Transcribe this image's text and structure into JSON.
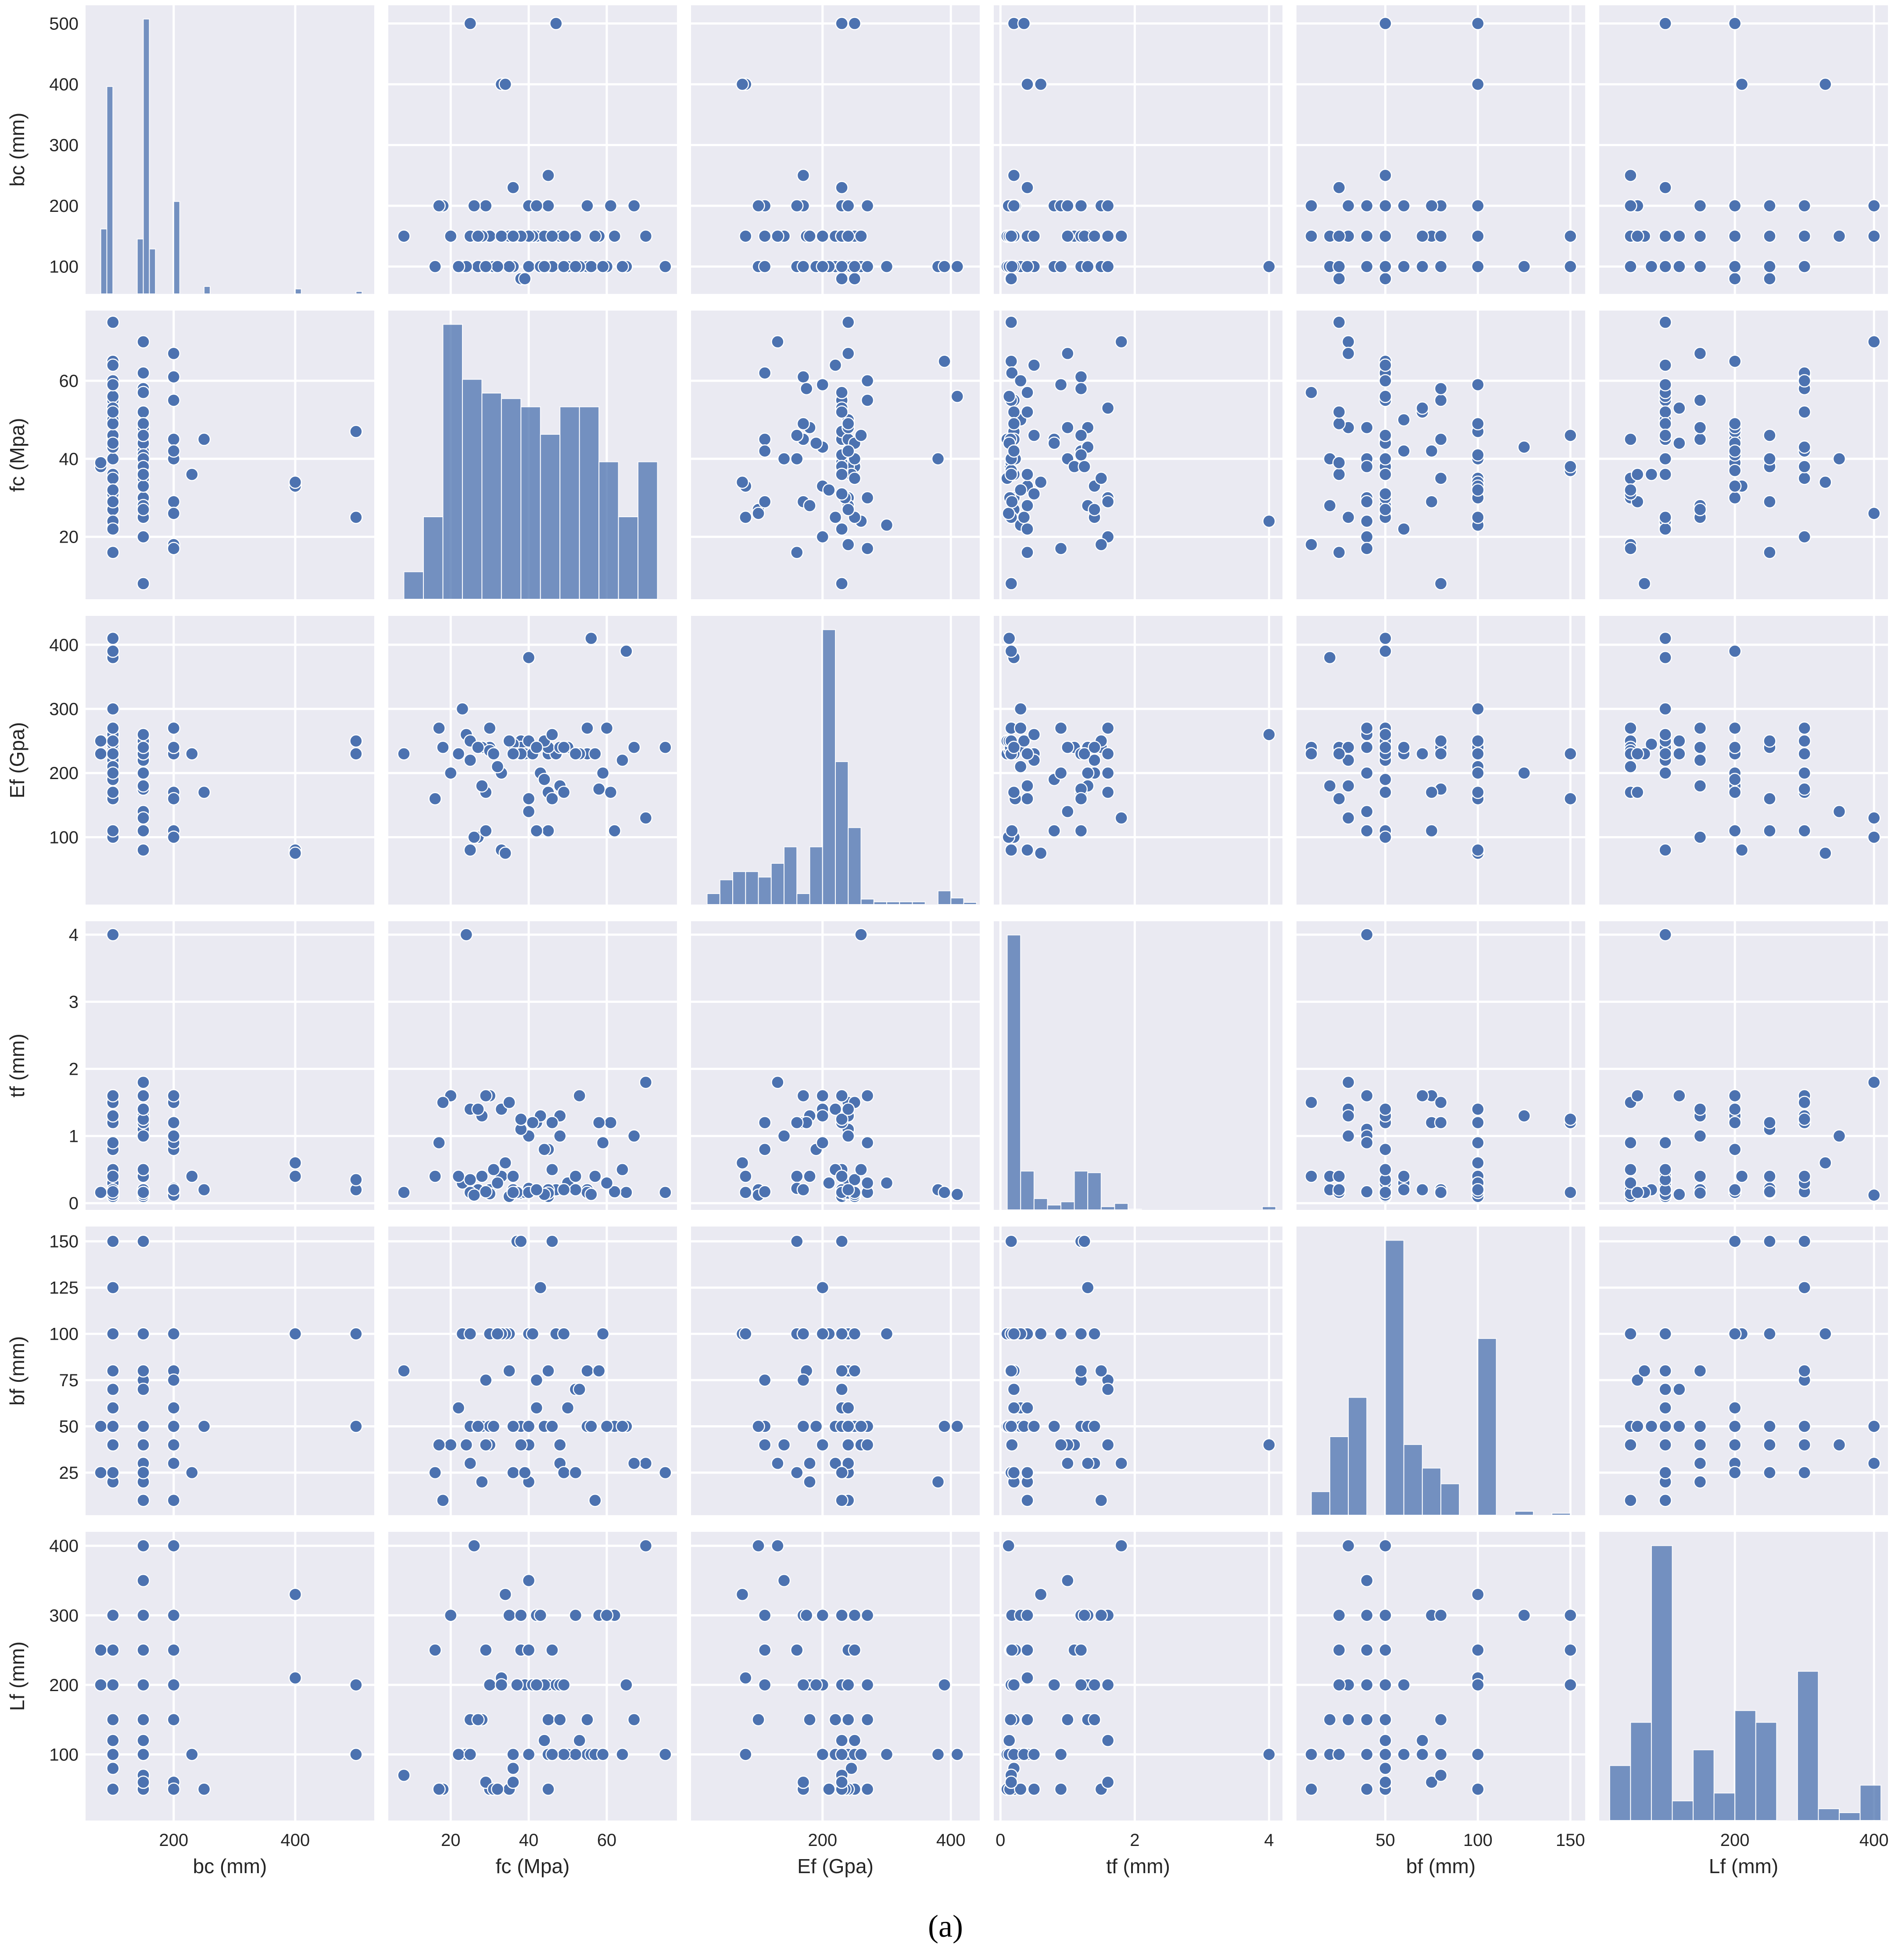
{
  "chart_data": {
    "type": "pairplot",
    "caption": "(a)",
    "colors": {
      "panel": "#eaeaf2",
      "grid": "#ffffff",
      "marker": "#4c72b0",
      "text": "#262626"
    },
    "variables": [
      {
        "name": "bc",
        "label": "bc (mm)",
        "range": [
          55,
          530
        ],
        "ticks": [
          200,
          400
        ],
        "yticks": [
          100,
          200,
          300,
          400,
          500
        ]
      },
      {
        "name": "fc",
        "label": "fc (Mpa)",
        "range": [
          4,
          78
        ],
        "ticks": [
          20,
          40,
          60
        ],
        "yticks": [
          20,
          40,
          60
        ]
      },
      {
        "name": "Ef",
        "label": "Ef (Gpa)",
        "range": [
          -5,
          445
        ],
        "ticks": [
          200,
          400
        ],
        "yticks": [
          100,
          200,
          300,
          400
        ]
      },
      {
        "name": "tf",
        "label": "tf (mm)",
        "range": [
          -0.1,
          4.2
        ],
        "ticks": [
          0,
          2,
          4
        ],
        "yticks": [
          0,
          1,
          2,
          3,
          4
        ]
      },
      {
        "name": "bf",
        "label": "bf (mm)",
        "range": [
          2,
          158
        ],
        "ticks": [
          50,
          100,
          150
        ],
        "yticks": [
          25,
          50,
          75,
          100,
          125,
          150
        ]
      },
      {
        "name": "Lf",
        "label": "Lf (mm)",
        "range": [
          5,
          420
        ],
        "ticks": [
          200,
          400
        ],
        "yticks": [
          100,
          200,
          300,
          400
        ]
      }
    ],
    "histograms": {
      "bc": {
        "bin_edges": [
          80,
          90,
          100,
          110,
          120,
          130,
          140,
          150,
          160,
          170,
          180,
          190,
          200,
          210,
          220,
          230,
          240,
          250,
          260,
          270,
          280,
          290,
          300,
          310,
          320,
          330,
          340,
          350,
          360,
          370,
          380,
          390,
          400,
          410,
          420,
          430,
          440,
          450,
          460,
          470,
          480,
          490,
          500,
          510
        ],
        "counts": [
          26,
          83,
          0,
          0,
          0,
          0,
          22,
          110,
          18,
          0,
          0,
          0,
          37,
          0,
          0,
          0,
          0,
          3,
          0,
          0,
          0,
          0,
          0,
          0,
          0,
          0,
          0,
          0,
          0,
          0,
          0,
          0,
          2,
          0,
          0,
          0,
          0,
          0,
          0,
          0,
          0,
          0,
          1
        ]
      },
      "fc": {
        "bin_edges": [
          8,
          13,
          18,
          23,
          28,
          33,
          38,
          43,
          48,
          53,
          58,
          63,
          68,
          73,
          78
        ],
        "counts": [
          1,
          3,
          10,
          8,
          7.5,
          7.3,
          7,
          6,
          7,
          7,
          5,
          3,
          5,
          0,
          4
        ]
      },
      "Ef": {
        "bin_edges": [
          20,
          40,
          60,
          80,
          100,
          120,
          140,
          160,
          180,
          200,
          220,
          240,
          260,
          280,
          300,
          320,
          340,
          360,
          380,
          400,
          420,
          440
        ],
        "counts": [
          2,
          4.5,
          6,
          6,
          5,
          7.5,
          10.5,
          2,
          10.5,
          50,
          26,
          14,
          1,
          0.5,
          0.5,
          0.5,
          0.5,
          0,
          2.5,
          1.2,
          0.4
        ]
      },
      "tf": {
        "bin_edges": [
          0.1,
          0.3,
          0.5,
          0.7,
          0.9,
          1.1,
          1.3,
          1.5,
          1.7,
          1.9,
          2.1,
          2.3,
          2.5,
          2.7,
          2.9,
          3.1,
          3.3,
          3.5,
          3.7,
          3.9,
          4.1
        ],
        "counts": [
          170,
          24,
          7,
          3,
          5,
          24,
          23,
          2,
          4,
          0.5,
          0,
          0,
          0,
          0,
          0,
          0,
          0,
          0,
          0,
          2
        ]
      },
      "bf": {
        "bin_edges": [
          10,
          20,
          30,
          40,
          50,
          60,
          70,
          80,
          90,
          100,
          110,
          120,
          130,
          140,
          150
        ],
        "counts": [
          6,
          20,
          30,
          0,
          70,
          18,
          12,
          8,
          0,
          45,
          0,
          1,
          0,
          0.5
        ]
      },
      "Lf": {
        "bin_edges": [
          20,
          50,
          80,
          110,
          140,
          170,
          200,
          230,
          260,
          290,
          320,
          350,
          380,
          410
        ],
        "counts": [
          14,
          25,
          70,
          5,
          18,
          7,
          28,
          25,
          0,
          38,
          3,
          2,
          9
        ]
      }
    },
    "scatter": {
      "bc": [
        100,
        150,
        200,
        150,
        100,
        100,
        150,
        200,
        150,
        100,
        400,
        500,
        230,
        250,
        100,
        150,
        80,
        100,
        150,
        200,
        150,
        100,
        150,
        200,
        100,
        150,
        150,
        400,
        100,
        150,
        100,
        150,
        200,
        100,
        150,
        100,
        200,
        150,
        100,
        150,
        100,
        150,
        200,
        80,
        100,
        150,
        100,
        150,
        200,
        100,
        150,
        100,
        150,
        100,
        200,
        150,
        100,
        150,
        200,
        100,
        150,
        100,
        150,
        100,
        150,
        500,
        100,
        150,
        200,
        150,
        100,
        150,
        200,
        100,
        150,
        100
      ],
      "fc": [
        45,
        30,
        61,
        25,
        16,
        55,
        35,
        45,
        20,
        40,
        33,
        47,
        36,
        45,
        30,
        28,
        38,
        50,
        42,
        55,
        48,
        23,
        40,
        18,
        65,
        52,
        38,
        34,
        27,
        58,
        75,
        30,
        40,
        46,
        62,
        24,
        45,
        33,
        36,
        70,
        22,
        44,
        29,
        39,
        60,
        25,
        31,
        48,
        40,
        56,
        37,
        43,
        28,
        64,
        17,
        41,
        35,
        49,
        26,
        53,
        40,
        32,
        57,
        44,
        8,
        25,
        49,
        38,
        67,
        46,
        29,
        36,
        42,
        59,
        27,
        52
      ],
      "Ef": [
        230,
        240,
        170,
        220,
        160,
        230,
        250,
        110,
        200,
        380,
        80,
        230,
        230,
        170,
        270,
        240,
        250,
        240,
        110,
        270,
        180,
        300,
        140,
        240,
        390,
        230,
        240,
        75,
        100,
        175,
        240,
        235,
        230,
        160,
        110,
        260,
        240,
        200,
        245,
        130,
        230,
        250,
        170,
        230,
        270,
        80,
        230,
        240,
        160,
        410,
        230,
        200,
        180,
        220,
        270,
        230,
        250,
        240,
        100,
        230,
        250,
        210,
        230,
        190,
        230,
        250,
        170,
        230,
        240,
        260,
        110,
        230,
        240,
        200,
        240,
        230
      ],
      "tf": [
        0.1,
        0.2,
        1.2,
        1.4,
        0.4,
        0.2,
        0.1,
        0.8,
        1.6,
        0.2,
        0.4,
        0.2,
        0.4,
        0.2,
        1.6,
        1.3,
        0.15,
        0.3,
        1.2,
        0.16,
        1.3,
        0.3,
        1.0,
        1.5,
        0.16,
        0.2,
        1.1,
        0.6,
        0.2,
        1.2,
        0.16,
        0.14,
        0.16,
        1.2,
        0.17,
        4,
        0.15,
        1.4,
        0.2,
        1.8,
        0.4,
        0.13,
        1.6,
        0.16,
        0.3,
        0.16,
        0.5,
        1.0,
        0.22,
        0.13,
        0.16,
        1.3,
        0.4,
        0.5,
        0.9,
        1.2,
        1.5,
        0.2,
        0.12,
        1.6,
        0.16,
        0.3,
        0.4,
        0.8,
        0.16,
        0.35,
        0.2,
        1.25,
        1.0,
        0.5,
        0.17,
        0.16,
        0.2,
        0.9,
        1.4,
        0.4
      ],
      "bf": [
        50,
        100,
        50,
        30,
        25,
        80,
        100,
        50,
        40,
        20,
        100,
        100,
        25,
        50,
        40,
        50,
        50,
        60,
        75,
        50,
        30,
        100,
        40,
        10,
        50,
        70,
        40,
        100,
        50,
        80,
        25,
        50,
        100,
        150,
        50,
        40,
        80,
        100,
        50,
        30,
        60,
        50,
        75,
        25,
        50,
        100,
        50,
        40,
        100,
        50,
        150,
        125,
        20,
        50,
        40,
        100,
        80,
        25,
        50,
        70,
        50,
        100,
        10,
        50,
        80,
        50,
        100,
        150,
        30,
        50,
        40,
        50,
        60,
        100,
        50,
        25
      ],
      "Lf": [
        100,
        200,
        300,
        150,
        250,
        100,
        50,
        200,
        300,
        100,
        210,
        200,
        100,
        50,
        200,
        150,
        250,
        100,
        300,
        150,
        200,
        100,
        350,
        50,
        200,
        100,
        250,
        330,
        150,
        300,
        100,
        50,
        200,
        250,
        300,
        100,
        150,
        200,
        80,
        400,
        100,
        120,
        60,
        200,
        300,
        100,
        50,
        150,
        250,
        100,
        200,
        300,
        150,
        100,
        50,
        200,
        300,
        100,
        400,
        120,
        250,
        50,
        100,
        200,
        70,
        100,
        200,
        300,
        150,
        100,
        250,
        60,
        200,
        100,
        150,
        300
      ]
    }
  }
}
